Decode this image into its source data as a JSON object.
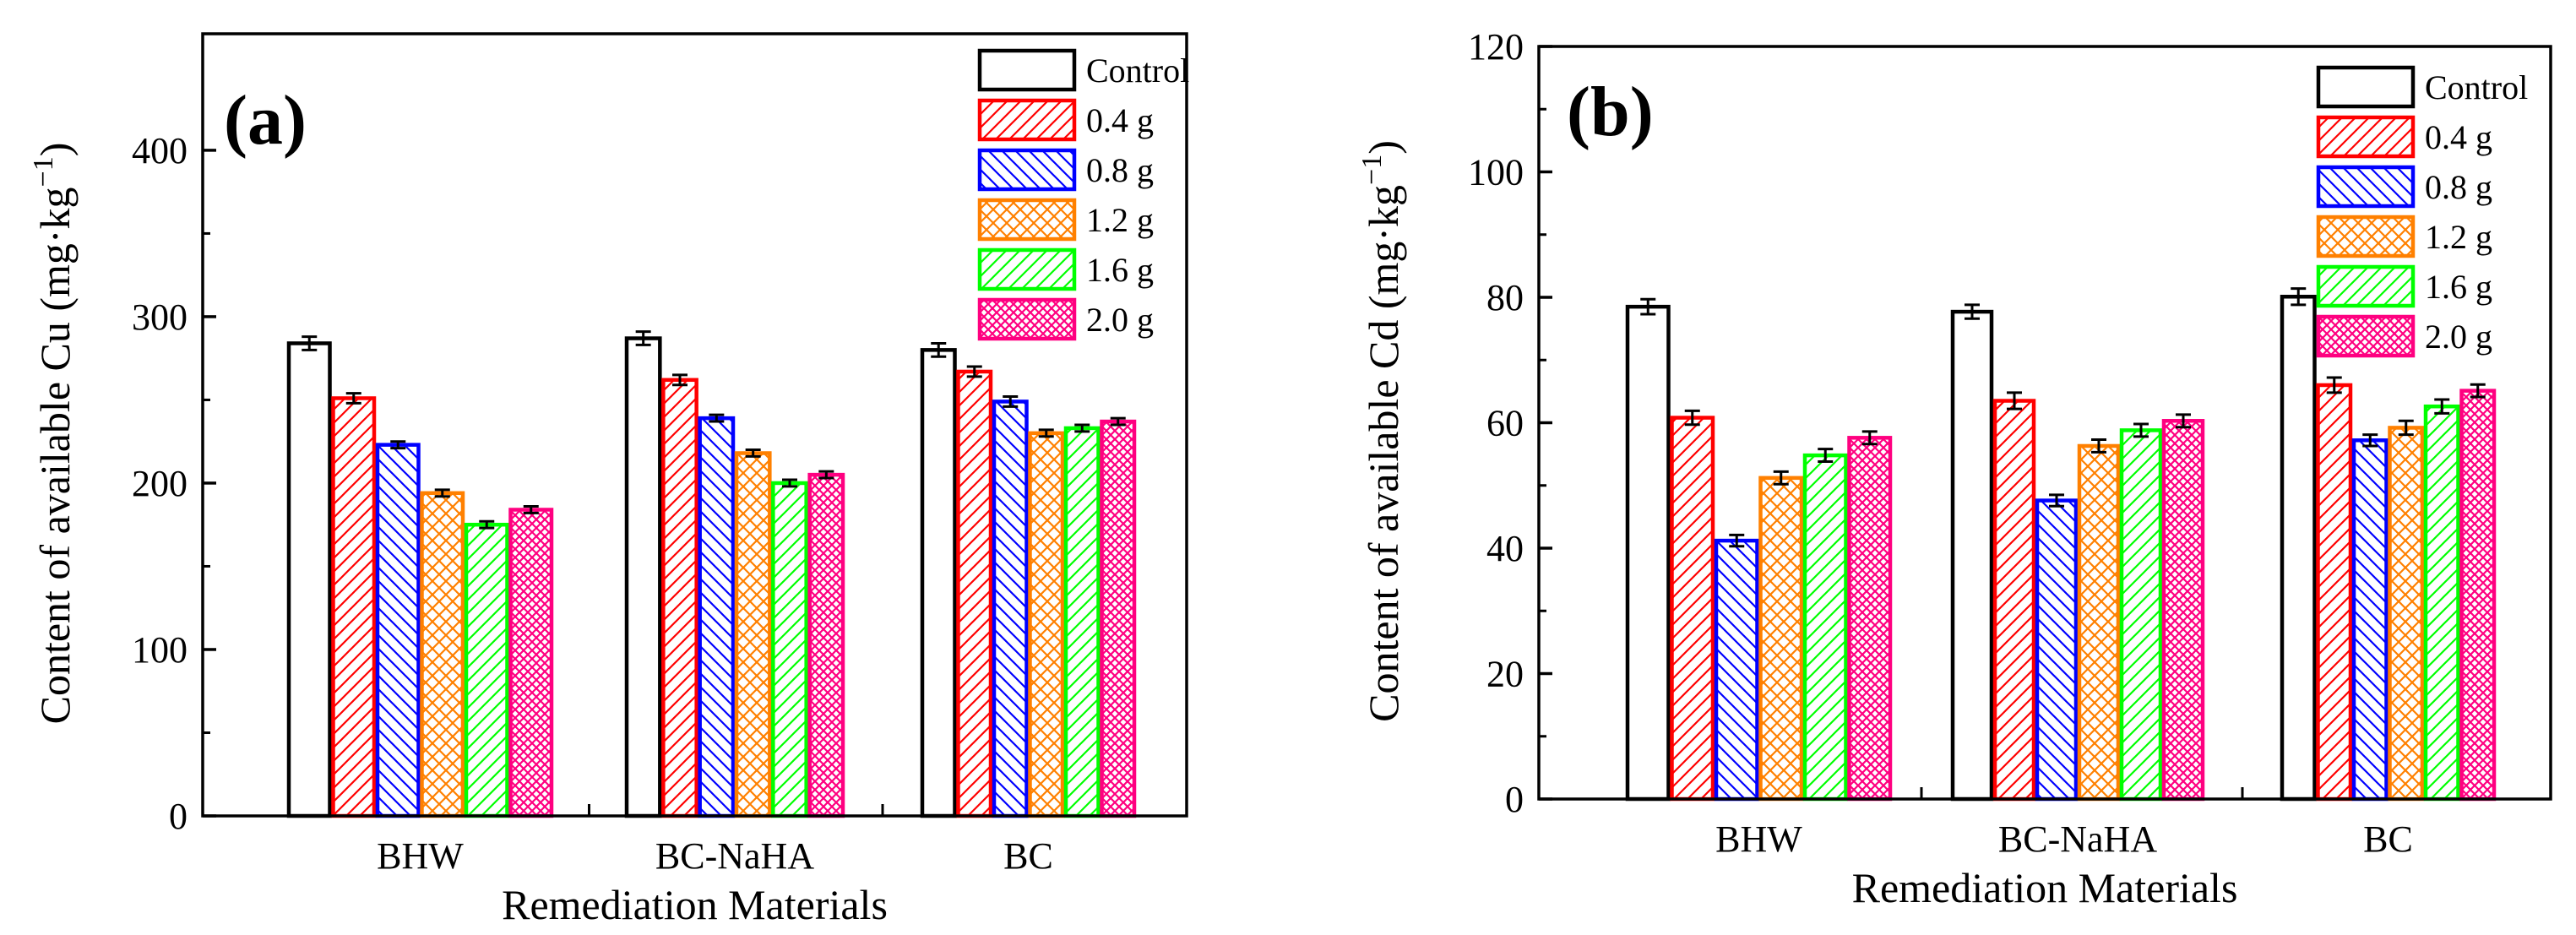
{
  "chart_data": [
    {
      "type": "bar",
      "panel_label": "(a)",
      "ylabel": "Content of available Cu",
      "yunit": "(mg·kg",
      "yunit_exp": "−1",
      "yunit_close": ")",
      "xlabel": "Remediation Materials",
      "categories": [
        "BHW",
        "BC-NaHA",
        "BC"
      ],
      "ylim": [
        0,
        470
      ],
      "yticks": [
        0,
        100,
        200,
        300,
        400
      ],
      "series": [
        {
          "name": "Control",
          "values": [
            284,
            287,
            280
          ],
          "errors": [
            4,
            4,
            4
          ]
        },
        {
          "name": "0.4 g",
          "values": [
            251,
            262,
            267
          ],
          "errors": [
            3,
            3,
            3
          ]
        },
        {
          "name": "0.8 g",
          "values": [
            223,
            239,
            249
          ],
          "errors": [
            2,
            2,
            3
          ]
        },
        {
          "name": "1.2 g",
          "values": [
            194,
            218,
            230
          ],
          "errors": [
            2,
            2,
            2
          ]
        },
        {
          "name": "1.6 g",
          "values": [
            175,
            200,
            233
          ],
          "errors": [
            2,
            2,
            2
          ]
        },
        {
          "name": "2.0 g",
          "values": [
            184,
            205,
            237
          ],
          "errors": [
            2,
            2,
            2
          ]
        }
      ]
    },
    {
      "type": "bar",
      "panel_label": "(b)",
      "ylabel": "Content of available Cd",
      "yunit": "(mg·kg",
      "yunit_exp": "−1",
      "yunit_close": ")",
      "xlabel": "Remediation Materials",
      "categories": [
        "BHW",
        "BC-NaHA",
        "BC"
      ],
      "ylim": [
        0,
        120
      ],
      "yticks": [
        0,
        20,
        40,
        60,
        80,
        100,
        120
      ],
      "series": [
        {
          "name": "Control",
          "values": [
            78.5,
            77.7,
            80.1
          ],
          "errors": [
            1.2,
            1.1,
            1.3
          ]
        },
        {
          "name": "0.4 g",
          "values": [
            60.8,
            63.5,
            66.0
          ],
          "errors": [
            1.1,
            1.3,
            1.2
          ]
        },
        {
          "name": "0.8 g",
          "values": [
            41.2,
            47.6,
            57.2
          ],
          "errors": [
            0.9,
            0.9,
            0.9
          ]
        },
        {
          "name": "1.2 g",
          "values": [
            51.2,
            56.3,
            59.2
          ],
          "errors": [
            1.0,
            1.0,
            1.1
          ]
        },
        {
          "name": "1.6 g",
          "values": [
            54.8,
            58.8,
            62.6
          ],
          "errors": [
            1.0,
            1.0,
            1.1
          ]
        },
        {
          "name": "2.0 g",
          "values": [
            57.6,
            60.3,
            65.1
          ],
          "errors": [
            1.0,
            1.0,
            1.0
          ]
        }
      ]
    }
  ],
  "style": {
    "series_colors": [
      "#000000",
      "#ff0000",
      "#0000ff",
      "#ff8000",
      "#00ff00",
      "#ff0080"
    ],
    "series_patterns": [
      "none",
      "diag-up",
      "diag-down",
      "cross",
      "diag-up",
      "crosshatch"
    ]
  }
}
